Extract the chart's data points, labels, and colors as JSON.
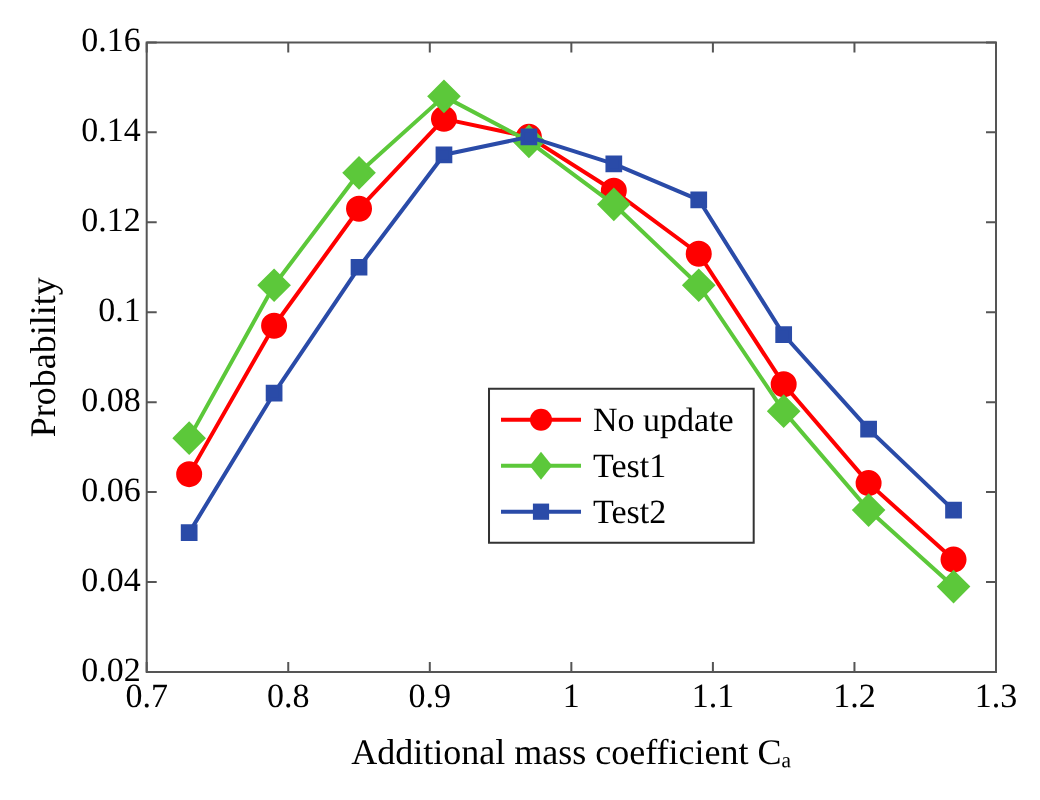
{
  "chart_data": {
    "type": "line",
    "xlabel": "Additional mass coefficient Cₐ",
    "ylabel": "Probability",
    "x": [
      0.73,
      0.79,
      0.85,
      0.91,
      0.97,
      1.03,
      1.09,
      1.15,
      1.21,
      1.27
    ],
    "series": [
      {
        "name": "No update",
        "color": "#ff0000",
        "marker": "circle",
        "values": [
          0.064,
          0.097,
          0.123,
          0.143,
          0.139,
          0.127,
          0.113,
          0.084,
          0.062,
          0.045
        ]
      },
      {
        "name": "Test1",
        "color": "#5cc83a",
        "marker": "diamond",
        "values": [
          0.072,
          0.106,
          0.131,
          0.148,
          0.138,
          0.124,
          0.106,
          0.078,
          0.056,
          0.039
        ]
      },
      {
        "name": "Test2",
        "color": "#2a4ba8",
        "marker": "square",
        "values": [
          0.051,
          0.082,
          0.11,
          0.135,
          0.139,
          0.133,
          0.125,
          0.095,
          0.074,
          0.056
        ]
      }
    ],
    "xlim": [
      0.7,
      1.3
    ],
    "xticks": [
      0.7,
      0.8,
      0.9,
      1,
      1.1,
      1.2,
      1.3
    ],
    "ylim": [
      0.02,
      0.16
    ],
    "yticks": [
      0.02,
      0.04,
      0.06,
      0.08,
      0.1,
      0.12,
      0.14,
      0.16
    ],
    "grid": false,
    "legend": "center",
    "line_style": "solid"
  }
}
